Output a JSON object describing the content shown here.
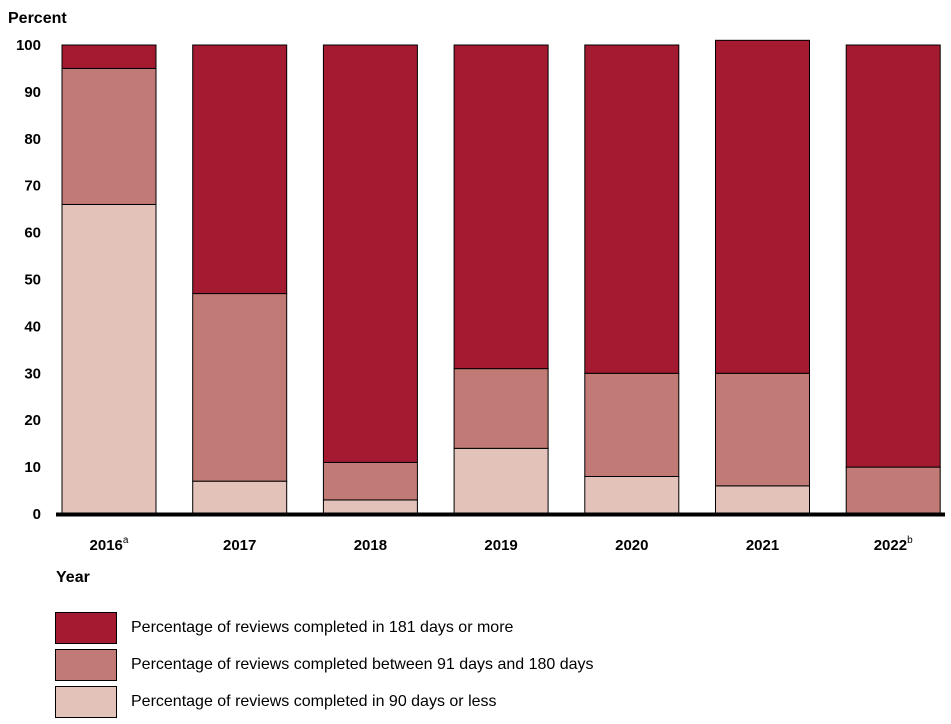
{
  "chart_data": {
    "type": "bar",
    "stacked": true,
    "ylabel": "Percent",
    "xlabel": "Year",
    "ylim": [
      0,
      100
    ],
    "yticks": [
      0,
      10,
      20,
      30,
      40,
      50,
      60,
      70,
      80,
      90,
      100
    ],
    "grid": false,
    "legend_position": "bottom",
    "categories": [
      {
        "label": "2016",
        "sup": "a"
      },
      {
        "label": "2017",
        "sup": ""
      },
      {
        "label": "2018",
        "sup": ""
      },
      {
        "label": "2019",
        "sup": ""
      },
      {
        "label": "2020",
        "sup": ""
      },
      {
        "label": "2021",
        "sup": ""
      },
      {
        "label": "2022",
        "sup": "b"
      }
    ],
    "series": [
      {
        "name": "Percentage of reviews completed in 90 days or less",
        "color": "#e3c2ba",
        "values": [
          66,
          7,
          3,
          14,
          8,
          6,
          0
        ]
      },
      {
        "name": "Percentage of reviews completed between 91 days and 180 days",
        "color": "#c27a76",
        "values": [
          29,
          40,
          8,
          17,
          22,
          24,
          10
        ]
      },
      {
        "name": "Percentage of reviews completed in 181 days or more",
        "color": "#a31a31",
        "values": [
          5,
          53,
          89,
          69,
          70,
          71,
          90
        ]
      }
    ],
    "legend_order": [
      2,
      1,
      0
    ]
  }
}
